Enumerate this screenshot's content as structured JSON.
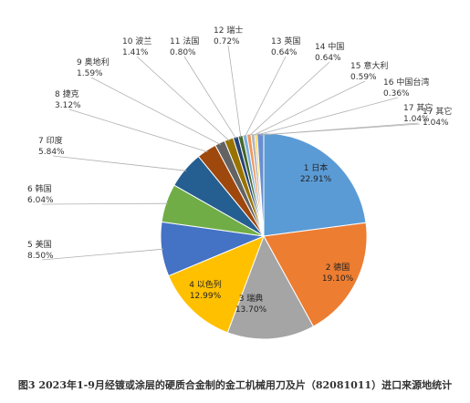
{
  "caption": "图3 2023年1-9月经镀或涂层的硬质合金制的金工机械用刀及片（82081011）进口来源地统计",
  "chart_data": {
    "type": "pie",
    "title": "",
    "slices": [
      {
        "rank": "1",
        "name": "日本",
        "value": 22.91,
        "pct": "22.91%",
        "color": "#5b9bd5"
      },
      {
        "rank": "2",
        "name": "德国",
        "value": 19.1,
        "pct": "19.10%",
        "color": "#ed7d31"
      },
      {
        "rank": "3",
        "name": "瑞典",
        "value": 13.7,
        "pct": "13.70%",
        "color": "#a5a5a5"
      },
      {
        "rank": "4",
        "name": "以色列",
        "value": 12.99,
        "pct": "12.99%",
        "color": "#ffc000"
      },
      {
        "rank": "5",
        "name": "美国",
        "value": 8.5,
        "pct": "8.50%",
        "color": "#4472c4"
      },
      {
        "rank": "6",
        "name": "韩国",
        "value": 6.04,
        "pct": "6.04%",
        "color": "#70ad47"
      },
      {
        "rank": "7",
        "name": "印度",
        "value": 5.84,
        "pct": "5.84%",
        "color": "#255e91"
      },
      {
        "rank": "8",
        "name": "捷克",
        "value": 3.12,
        "pct": "3.12%",
        "color": "#9e480e"
      },
      {
        "rank": "9",
        "name": "奥地利",
        "value": 1.59,
        "pct": "1.59%",
        "color": "#636363"
      },
      {
        "rank": "10",
        "name": "波兰",
        "value": 1.41,
        "pct": "1.41%",
        "color": "#997300"
      },
      {
        "rank": "11",
        "name": "法国",
        "value": 0.8,
        "pct": "0.80%",
        "color": "#264478"
      },
      {
        "rank": "12",
        "name": "瑞士",
        "value": 0.72,
        "pct": "0.72%",
        "color": "#43682b"
      },
      {
        "rank": "13",
        "name": "英国",
        "value": 0.64,
        "pct": "0.64%",
        "color": "#7cafdd"
      },
      {
        "rank": "14",
        "name": "中国",
        "value": 0.64,
        "pct": "0.64%",
        "color": "#f1975a"
      },
      {
        "rank": "15",
        "name": "意大利",
        "value": 0.59,
        "pct": "0.59%",
        "color": "#b7b7b7"
      },
      {
        "rank": "16",
        "name": "中国台湾",
        "value": 0.36,
        "pct": "0.36%",
        "color": "#ffcd33"
      },
      {
        "rank": "17",
        "name": "其它",
        "value": 1.04,
        "pct": "1.04%",
        "color": "#698ed0"
      }
    ]
  }
}
